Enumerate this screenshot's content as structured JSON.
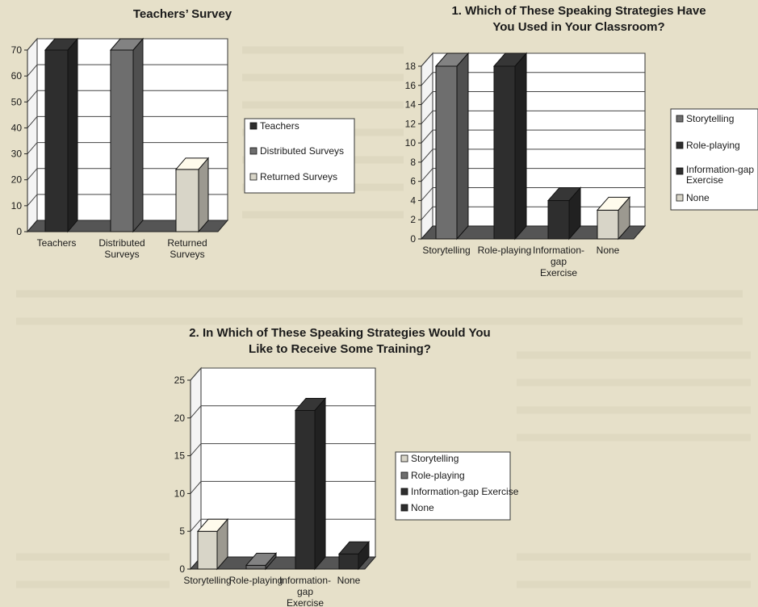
{
  "colors": {
    "dark": "#2e2e2e",
    "medium": "#6e6e6e",
    "light": "#d8d5c8",
    "panel": "#ffffff"
  },
  "chart_data": [
    {
      "type": "bar",
      "title": "Teachers’ Survey",
      "categories": [
        "Teachers",
        "Distributed Surveys",
        "Returned Surveys"
      ],
      "values": [
        70,
        70,
        24
      ],
      "bar_colors": [
        "dark",
        "medium",
        "light"
      ],
      "legend": [
        "Teachers",
        "Distributed Surveys",
        "Returned Surveys"
      ],
      "legend_colors": [
        "dark",
        "medium",
        "light"
      ],
      "ylim": [
        0,
        70
      ],
      "yticks": [
        0,
        10,
        20,
        30,
        40,
        50,
        60,
        70
      ],
      "grid": true,
      "legend_position": "right"
    },
    {
      "type": "bar",
      "title": "1. Which of These Speaking Strategies Have You Used in Your Classroom?",
      "categories": [
        "Storytelling",
        "Role-playing",
        "Information-gap Exercise",
        "None"
      ],
      "values": [
        18,
        18,
        4,
        3
      ],
      "bar_colors": [
        "medium",
        "dark",
        "dark",
        "light"
      ],
      "legend": [
        "Storytelling",
        "Role-playing",
        "Information-gap Exercise",
        "None"
      ],
      "legend_colors": [
        "medium",
        "dark",
        "dark",
        "light"
      ],
      "ylim": [
        0,
        18
      ],
      "yticks": [
        0,
        2,
        4,
        6,
        8,
        10,
        12,
        14,
        16,
        18
      ],
      "grid": true,
      "legend_position": "right"
    },
    {
      "type": "bar",
      "title": "2. In Which of These Speaking Strategies Would You Like to Receive Some Training?",
      "categories": [
        "Storytelling",
        "Role-playing",
        "Information-gap Exercise",
        "None"
      ],
      "values": [
        5,
        0.5,
        21,
        2
      ],
      "bar_colors": [
        "light",
        "medium",
        "dark",
        "dark"
      ],
      "legend": [
        "Storytelling",
        "Role-playing",
        "Information-gap Exercise",
        "None"
      ],
      "legend_colors": [
        "light",
        "medium",
        "dark",
        "dark"
      ],
      "ylim": [
        0,
        25
      ],
      "yticks": [
        0,
        5,
        10,
        15,
        20,
        25
      ],
      "grid": true,
      "legend_position": "right"
    }
  ]
}
